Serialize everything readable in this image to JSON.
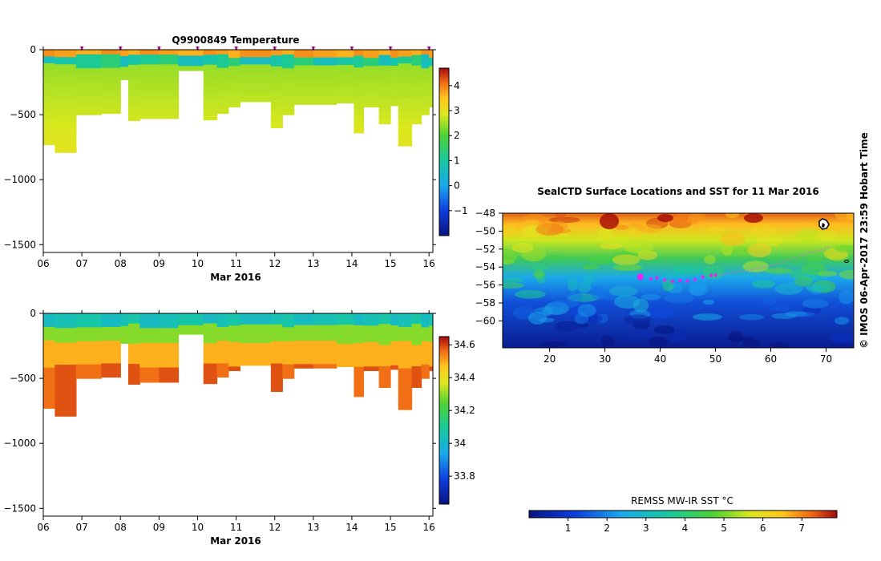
{
  "chart_data": [
    {
      "type": "heatmap",
      "title": "Q9900849  Temperature",
      "xlabel": "Mar 2016",
      "ylabel": "",
      "xlim": [
        6,
        16.1
      ],
      "ylim": [
        -1560,
        0
      ],
      "x_ticks": [
        "06",
        "07",
        "08",
        "09",
        "10",
        "11",
        "12",
        "13",
        "14",
        "15",
        "16"
      ],
      "y_ticks": [
        0,
        -500,
        -1000,
        -1500
      ],
      "colorbar": {
        "min": -2,
        "max": 4.7,
        "ticks": [
          -1,
          0,
          1,
          2,
          3,
          4
        ]
      },
      "surface_markers": [
        7,
        8,
        9,
        10,
        11,
        12,
        13,
        14,
        15,
        16
      ],
      "profiles": [
        {
          "day": 6.0,
          "bottom": -730
        },
        {
          "day": 6.3,
          "bottom": -790
        },
        {
          "day": 6.85,
          "bottom": -500
        },
        {
          "day": 7.5,
          "bottom": -490
        },
        {
          "day": 8.0,
          "bottom": -230
        },
        {
          "day": 8.2,
          "bottom": -545
        },
        {
          "day": 8.5,
          "bottom": -530
        },
        {
          "day": 9.0,
          "bottom": -530
        },
        {
          "day": 9.5,
          "bottom": -160
        },
        {
          "day": 10.15,
          "bottom": -540
        },
        {
          "day": 10.5,
          "bottom": -490
        },
        {
          "day": 10.8,
          "bottom": -440
        },
        {
          "day": 11.1,
          "bottom": -400
        },
        {
          "day": 11.9,
          "bottom": -600
        },
        {
          "day": 12.2,
          "bottom": -500
        },
        {
          "day": 12.5,
          "bottom": -420
        },
        {
          "day": 13.0,
          "bottom": -420
        },
        {
          "day": 13.6,
          "bottom": -410
        },
        {
          "day": 14.05,
          "bottom": -640
        },
        {
          "day": 14.3,
          "bottom": -440
        },
        {
          "day": 14.7,
          "bottom": -570
        },
        {
          "day": 15.0,
          "bottom": -430
        },
        {
          "day": 15.2,
          "bottom": -740
        },
        {
          "day": 15.55,
          "bottom": -570
        },
        {
          "day": 15.8,
          "bottom": -500
        },
        {
          "day": 16.0,
          "bottom": -440
        }
      ]
    },
    {
      "type": "heatmap",
      "title": "",
      "xlabel": "Mar 2016",
      "ylabel": "",
      "xlim": [
        6,
        16.1
      ],
      "ylim": [
        -1560,
        0
      ],
      "x_ticks": [
        "06",
        "07",
        "08",
        "09",
        "10",
        "11",
        "12",
        "13",
        "14",
        "15",
        "16"
      ],
      "y_ticks": [
        0,
        -500,
        -1000,
        -1500
      ],
      "colorbar": {
        "min": 33.63,
        "max": 34.65,
        "ticks": [
          33.8,
          34,
          34.2,
          34.4,
          34.6
        ],
        "tick_labels": [
          "33.8",
          "34",
          "34.2",
          "34.4",
          "34.6"
        ]
      }
    },
    {
      "type": "heatmap",
      "title": "SealCTD Surface Locations and SST for 11 Mar 2016",
      "xlim": [
        11.5,
        75
      ],
      "ylim": [
        -63,
        -48
      ],
      "x_ticks": [
        20,
        30,
        40,
        50,
        60,
        70
      ],
      "y_ticks": [
        -48,
        -50,
        -52,
        -54,
        -56,
        -58,
        -60
      ],
      "colorbar": {
        "label": "REMSS MW-IR SST °C",
        "min": 0,
        "max": 7.9,
        "ticks": [
          1,
          2,
          3,
          4,
          5,
          6,
          7
        ]
      },
      "seal_track": [
        {
          "lon": 36.4,
          "lat": -55.1
        },
        {
          "lon": 38.3,
          "lat": -55.3
        },
        {
          "lon": 39.4,
          "lat": -55.2
        },
        {
          "lon": 40.8,
          "lat": -55.45
        },
        {
          "lon": 42.2,
          "lat": -55.6
        },
        {
          "lon": 43.6,
          "lat": -55.5
        },
        {
          "lon": 44.9,
          "lat": -55.55
        },
        {
          "lon": 46.3,
          "lat": -55.4
        },
        {
          "lon": 47.7,
          "lat": -55.1
        },
        {
          "lon": 49.2,
          "lat": -54.95
        },
        {
          "lon": 50.0,
          "lat": -54.9
        }
      ],
      "faint_track": [
        {
          "lon": 50.0,
          "lat": -54.9
        },
        {
          "lon": 56.5,
          "lat": -54.3
        },
        {
          "lon": 61.0,
          "lat": -53.7
        },
        {
          "lon": 66.5,
          "lat": -52.5
        },
        {
          "lon": 70.5,
          "lat": -51.8
        }
      ]
    }
  ],
  "credit": "© IMOS 06-Apr-2017 23:59 Hobart Time"
}
